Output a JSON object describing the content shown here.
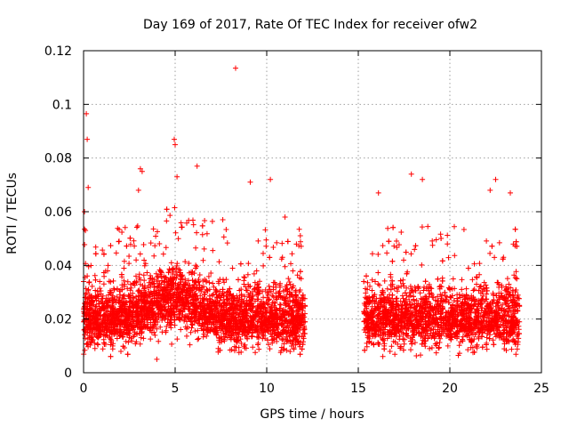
{
  "chart_data": {
    "type": "scatter",
    "title": "Day 169 of 2017, Rate Of TEC Index for receiver ofw2",
    "xlabel": "GPS time / hours",
    "ylabel": "ROTI / TECUs",
    "xlim": [
      0,
      25
    ],
    "ylim": [
      0,
      0.12
    ],
    "xticks": [
      0,
      5,
      10,
      15,
      20,
      25
    ],
    "xtick_labels": [
      "0",
      "5",
      "10",
      "15",
      "20",
      "25"
    ],
    "yticks": [
      0,
      0.02,
      0.04,
      0.06,
      0.08,
      0.1,
      0.12
    ],
    "ytick_labels": [
      "0",
      "0.02",
      "0.04",
      "0.06",
      "0.08",
      "0.1",
      "0.12"
    ],
    "grid": true,
    "marker": "+",
    "color": "#ff0000",
    "series": [
      {
        "name": "ROTI",
        "segments": [
          {
            "x_start": 0.0,
            "x_end": 12.1,
            "typical_range": [
              0.01,
              0.035
            ],
            "baseline": 0.02
          },
          {
            "x_start": 15.3,
            "x_end": 23.8,
            "typical_range": [
              0.01,
              0.035
            ],
            "baseline": 0.02
          }
        ],
        "gap": [
          12.1,
          15.3
        ],
        "notable_points": [
          {
            "x": 8.3,
            "y": 0.1135
          },
          {
            "x": 0.15,
            "y": 0.0965
          },
          {
            "x": 0.2,
            "y": 0.087
          },
          {
            "x": 4.95,
            "y": 0.087
          },
          {
            "x": 5.0,
            "y": 0.085
          },
          {
            "x": 6.2,
            "y": 0.077
          },
          {
            "x": 3.1,
            "y": 0.076
          },
          {
            "x": 3.2,
            "y": 0.075
          },
          {
            "x": 0.25,
            "y": 0.069
          },
          {
            "x": 5.1,
            "y": 0.073
          },
          {
            "x": 10.2,
            "y": 0.072
          },
          {
            "x": 17.9,
            "y": 0.074
          },
          {
            "x": 18.5,
            "y": 0.072
          },
          {
            "x": 22.5,
            "y": 0.072
          },
          {
            "x": 3.0,
            "y": 0.068
          },
          {
            "x": 9.1,
            "y": 0.071
          },
          {
            "x": 16.1,
            "y": 0.067
          },
          {
            "x": 22.2,
            "y": 0.068
          },
          {
            "x": 23.3,
            "y": 0.067
          },
          {
            "x": 4.0,
            "y": 0.005
          },
          {
            "x": 7.6,
            "y": 0.057
          },
          {
            "x": 11.0,
            "y": 0.058
          },
          {
            "x": 0.05,
            "y": 0.06
          },
          {
            "x": 0.1,
            "y": 0.053
          }
        ]
      }
    ]
  }
}
